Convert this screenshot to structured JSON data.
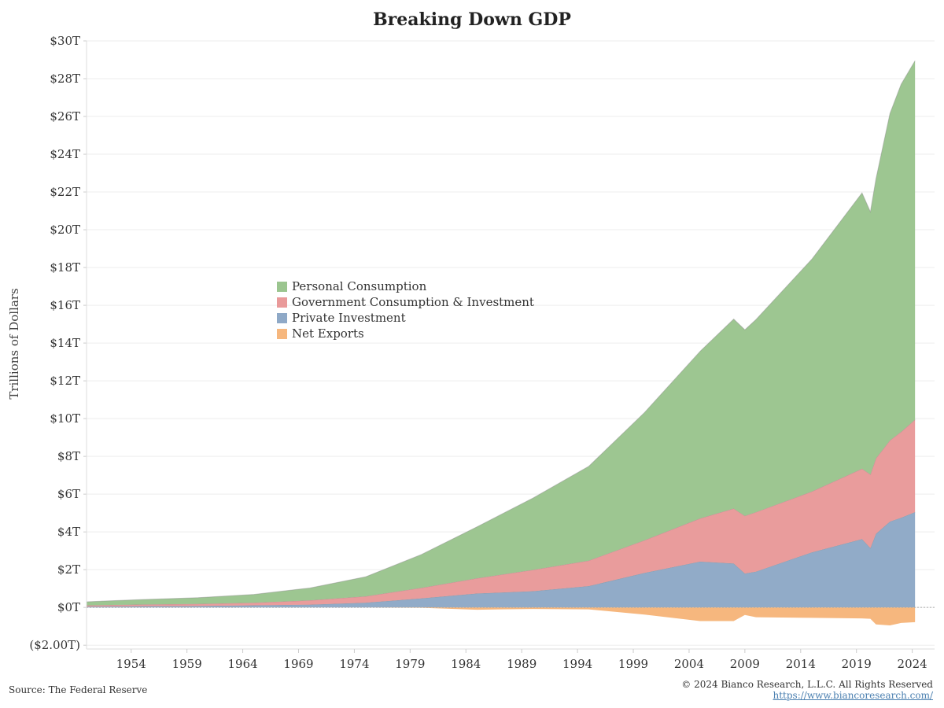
{
  "chart_data": {
    "type": "area",
    "stacked": true,
    "title": "Breaking Down GDP",
    "ylabel": "Trillions of Dollars",
    "xlabel": "",
    "ylim": [
      -2.2,
      30
    ],
    "xlim": [
      1950,
      2026
    ],
    "grid": true,
    "legend_position": "upper-left-middle",
    "y_ticks": [
      {
        "value": 30,
        "label": "$30T"
      },
      {
        "value": 28,
        "label": "$28T"
      },
      {
        "value": 26,
        "label": "$26T"
      },
      {
        "value": 24,
        "label": "$24T"
      },
      {
        "value": 22,
        "label": "$22T"
      },
      {
        "value": 20,
        "label": "$20T"
      },
      {
        "value": 18,
        "label": "$18T"
      },
      {
        "value": 16,
        "label": "$16T"
      },
      {
        "value": 14,
        "label": "$14T"
      },
      {
        "value": 12,
        "label": "$12T"
      },
      {
        "value": 10,
        "label": "$10T"
      },
      {
        "value": 8,
        "label": "$8T"
      },
      {
        "value": 6,
        "label": "$6T"
      },
      {
        "value": 4,
        "label": "$4T"
      },
      {
        "value": 2,
        "label": "$2T"
      },
      {
        "value": 0,
        "label": "$0T"
      },
      {
        "value": -2,
        "label": "($2.00T)"
      }
    ],
    "x_ticks": [
      1954,
      1959,
      1964,
      1969,
      1974,
      1979,
      1984,
      1989,
      1994,
      1999,
      2004,
      2009,
      2014,
      2019,
      2024
    ],
    "x": [
      1950.0,
      1955,
      1960,
      1965,
      1970,
      1975,
      1980,
      1985,
      1990,
      1995,
      2000,
      2005,
      2008.0,
      2009.0,
      2010,
      2015,
      2019.5,
      2020.25,
      2020.75,
      2022,
      2023,
      2024.25
    ],
    "series": [
      {
        "name": "Private Investment",
        "color": "#8fa9c7",
        "values": [
          0.05,
          0.07,
          0.08,
          0.11,
          0.15,
          0.25,
          0.48,
          0.74,
          0.86,
          1.13,
          1.83,
          2.43,
          2.33,
          1.8,
          1.9,
          2.92,
          3.62,
          3.15,
          3.9,
          4.55,
          4.75,
          5.05
        ]
      },
      {
        "name": "Government Consumption & Investment",
        "color": "#e99a9a",
        "values": [
          0.06,
          0.09,
          0.11,
          0.14,
          0.23,
          0.34,
          0.56,
          0.81,
          1.13,
          1.35,
          1.73,
          2.29,
          2.91,
          3.05,
          3.15,
          3.22,
          3.73,
          3.9,
          4.0,
          4.3,
          4.55,
          4.9
        ]
      },
      {
        "name": "Personal Consumption",
        "color": "#9bc58f",
        "values": [
          0.19,
          0.26,
          0.33,
          0.44,
          0.65,
          1.03,
          1.76,
          2.72,
          3.8,
          4.99,
          6.76,
          8.85,
          10.03,
          9.85,
          10.2,
          12.3,
          14.6,
          13.9,
          14.8,
          17.3,
          18.4,
          19.0
        ]
      },
      {
        "name": "Net Exports",
        "color": "#f6b77e",
        "negative": true,
        "values": [
          0.0,
          0.0,
          0.0,
          0.0,
          0.0,
          0.0,
          -0.02,
          -0.12,
          -0.08,
          -0.1,
          -0.38,
          -0.72,
          -0.72,
          -0.4,
          -0.52,
          -0.55,
          -0.58,
          -0.6,
          -0.9,
          -0.95,
          -0.82,
          -0.78
        ]
      }
    ]
  },
  "legend": {
    "items": [
      {
        "label": "Personal Consumption",
        "color": "#9bc58f"
      },
      {
        "label": "Government Consumption & Investment",
        "color": "#e99a9a"
      },
      {
        "label": "Private Investment",
        "color": "#8fa9c7"
      },
      {
        "label": "Net Exports",
        "color": "#f6b77e"
      }
    ]
  },
  "footer": {
    "source": "Source: The Federal Reserve",
    "copyright": "© 2024 Bianco Research, L.L.C. All Rights Reserved",
    "url": "https://www.biancoresearch.com/"
  }
}
